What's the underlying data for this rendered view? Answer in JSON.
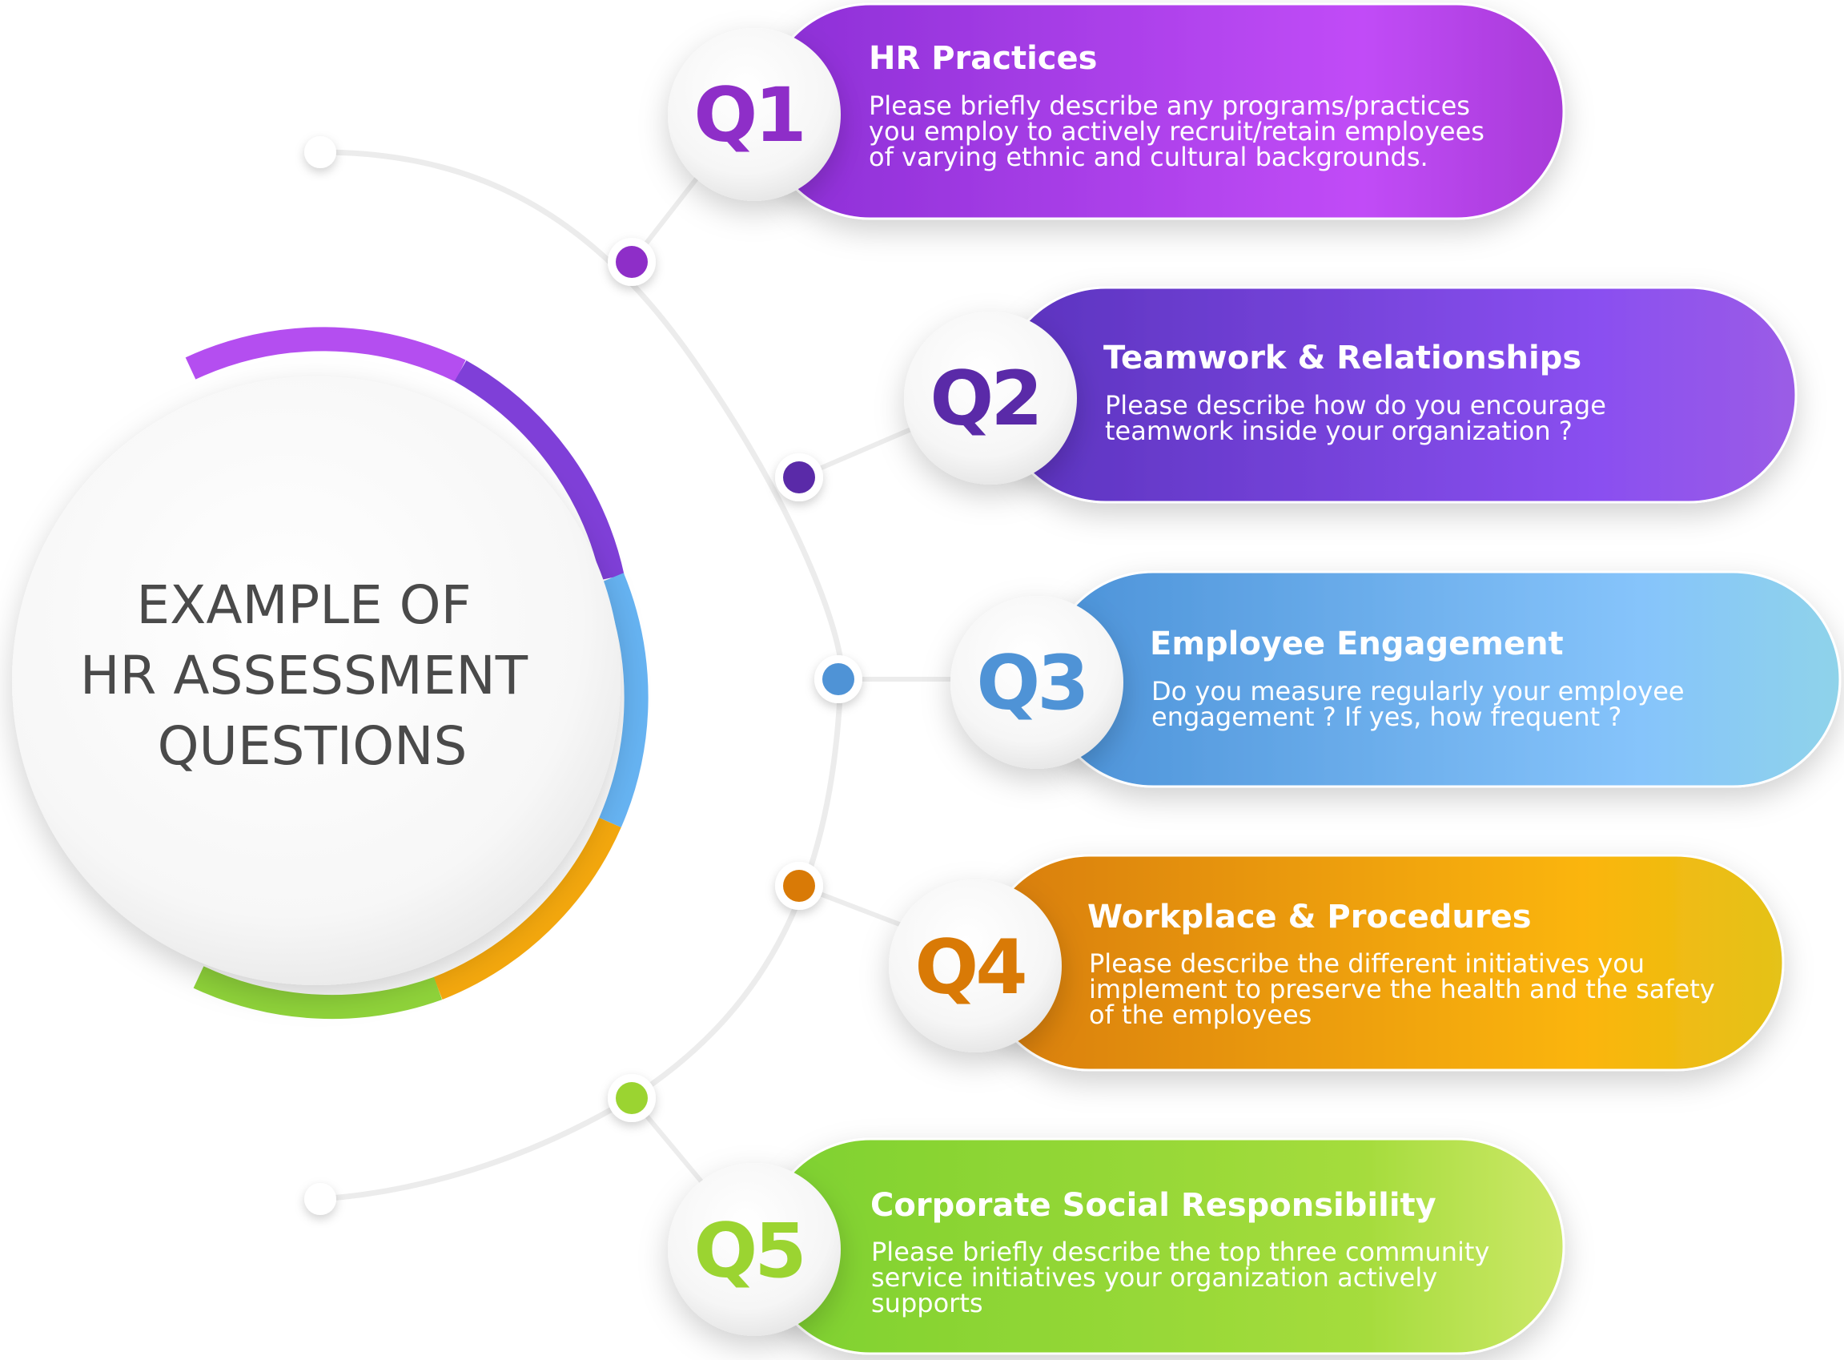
{
  "title": {
    "lines": [
      "EXAMPLE OF",
      "HR ASSESSMENT",
      "QUESTIONS"
    ]
  },
  "questions": [
    {
      "number": "Q1",
      "title": "HR Practices",
      "description": [
        "Please briefly describe any programs/practices",
        "you employ to actively recruit/retain employees",
        "of varying ethnic and cultural backgrounds."
      ],
      "colors": [
        "#8c2fd6",
        "#c14cf7",
        "#a83ad8"
      ]
    },
    {
      "number": "Q2",
      "title": "Teamwork & Relationships",
      "description": [
        "Please describe how do you encourage",
        "teamwork inside your organization ?"
      ],
      "colors": [
        "#5b33be",
        "#8a4ff0",
        "#9b5ce6"
      ]
    },
    {
      "number": "Q3",
      "title": "Employee Engagement",
      "description": [
        "Do you measure regularly your employee",
        "engagement ? If yes, how frequent ?"
      ],
      "colors": [
        "#4b92d8",
        "#86c4fb",
        "#8fd3ea"
      ]
    },
    {
      "number": "Q4",
      "title": "Workplace & Procedures",
      "description": [
        "Please describe the different initiatives you",
        "implement to preserve the health and the safety",
        "of the employees"
      ],
      "colors": [
        "#d87d08",
        "#fbb50a",
        "#e4c21a"
      ]
    },
    {
      "number": "Q5",
      "title": "Corporate Social Responsibility",
      "description": [
        "Please briefly describe the top three community",
        "service initiatives your organization actively",
        "supports"
      ],
      "colors": [
        "#7ed12f",
        "#a5dc3c",
        "#cde868"
      ]
    }
  ],
  "ring_colors": [
    "#b44ef0",
    "#7f3fd8",
    "#66b3f2",
    "#f3a70d",
    "#8fd33a"
  ],
  "number_colors": [
    "#8e2ec8",
    "#5a2aa8",
    "#4f93d6",
    "#d97a06",
    "#9bd431"
  ]
}
